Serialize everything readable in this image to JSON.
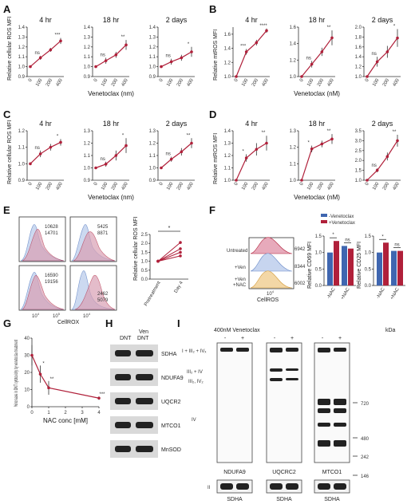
{
  "panels": {
    "A": "A",
    "B": "B",
    "C": "C",
    "D": "D",
    "E": "E",
    "F": "F",
    "G": "G",
    "H": "H",
    "I": "I"
  },
  "chart_data": [
    {
      "id": "A",
      "type": "line",
      "ylabel": "Relative cellular ROS MFI",
      "xlabel": "Venetoclax (nm)",
      "ylim": [
        0.9,
        1.4
      ],
      "yticks": [
        "0.9",
        "1.0",
        "1.1",
        "1.2",
        "1.3",
        "1.4"
      ],
      "categories": [
        "0",
        "100",
        "200",
        "400"
      ],
      "subplots": [
        {
          "title": "4 hr",
          "values": [
            1.0,
            1.09,
            1.17,
            1.26
          ],
          "err": [
            0.0,
            0.02,
            0.02,
            0.03
          ],
          "sig": [
            "",
            "ns",
            "",
            "***"
          ]
        },
        {
          "title": "18 hr",
          "values": [
            1.0,
            1.06,
            1.12,
            1.22
          ],
          "err": [
            0.0,
            0.03,
            0.03,
            0.05
          ],
          "sig": [
            "",
            "ns",
            "",
            "**"
          ]
        },
        {
          "title": "2 days",
          "values": [
            1.0,
            1.05,
            1.09,
            1.15
          ],
          "err": [
            0.0,
            0.03,
            0.03,
            0.05
          ],
          "sig": [
            "",
            "ns",
            "",
            "*"
          ]
        }
      ]
    },
    {
      "id": "B",
      "type": "line",
      "ylabel": "Relative mtROS MFI",
      "xlabel": "Venetoclax (nM)",
      "subplots": [
        {
          "title": "4 hr",
          "ylim": [
            1.0,
            1.7
          ],
          "yticks": [
            "1.0",
            "1.2",
            "1.4",
            "1.6"
          ],
          "values": [
            1.0,
            1.35,
            1.48,
            1.65
          ],
          "err": [
            0.0,
            0.04,
            0.04,
            0.03
          ],
          "sig": [
            "",
            "***",
            "",
            "****"
          ]
        },
        {
          "title": "18 hr",
          "ylim": [
            1.0,
            1.6
          ],
          "yticks": [
            "1.0",
            "1.2",
            "1.4",
            "1.6"
          ],
          "values": [
            1.0,
            1.15,
            1.3,
            1.47
          ],
          "err": [
            0.0,
            0.04,
            0.05,
            0.09
          ],
          "sig": [
            "",
            "ns",
            "",
            "**"
          ]
        },
        {
          "title": "2 days",
          "ylim": [
            1.0,
            2.0
          ],
          "yticks": [
            "1.0",
            "1.2",
            "1.4",
            "1.6",
            "1.8",
            "2.0"
          ],
          "values": [
            1.0,
            1.3,
            1.5,
            1.78
          ],
          "err": [
            0.0,
            0.1,
            0.12,
            0.18
          ],
          "sig": [
            "",
            "ns",
            "",
            "*"
          ]
        }
      ],
      "categories": [
        "0",
        "100",
        "200",
        "400"
      ]
    },
    {
      "id": "C",
      "type": "line",
      "ylabel": "Relative cellular ROS MFI",
      "xlabel": "Venetoclax (nm)",
      "categories": [
        "0",
        "100",
        "200",
        "400"
      ],
      "subplots": [
        {
          "title": "4 hr",
          "ylim": [
            0.9,
            1.2
          ],
          "yticks": [
            "0.9",
            "1.0",
            "1.1",
            "1.2"
          ],
          "values": [
            1.0,
            1.06,
            1.1,
            1.13
          ],
          "err": [
            0.0,
            0.02,
            0.02,
            0.02
          ],
          "sig": [
            "",
            "ns",
            "",
            "*"
          ]
        },
        {
          "title": "18 hr",
          "ylim": [
            0.9,
            1.3
          ],
          "yticks": [
            "0.9",
            "1.0",
            "1.1",
            "1.2",
            "1.3"
          ],
          "values": [
            1.0,
            1.03,
            1.1,
            1.18
          ],
          "err": [
            0.0,
            0.02,
            0.04,
            0.06
          ],
          "sig": [
            "",
            "ns",
            "",
            "*"
          ]
        },
        {
          "title": "2 days",
          "ylim": [
            0.9,
            1.3
          ],
          "yticks": [
            "0.9",
            "1.0",
            "1.1",
            "1.2",
            "1.3"
          ],
          "values": [
            1.0,
            1.07,
            1.13,
            1.2
          ],
          "err": [
            0.0,
            0.02,
            0.03,
            0.04
          ],
          "sig": [
            "",
            "ns",
            "",
            "**"
          ]
        }
      ]
    },
    {
      "id": "D",
      "type": "line",
      "ylabel": "Relative mtROS MFI",
      "xlabel": "Venetoclax (nM)",
      "categories": [
        "0",
        "100",
        "200",
        "400"
      ],
      "subplots": [
        {
          "title": "4 hr",
          "ylim": [
            1.0,
            1.4
          ],
          "yticks": [
            "1.0",
            "1.1",
            "1.2",
            "1.3",
            "1.4"
          ],
          "values": [
            1.0,
            1.18,
            1.25,
            1.3
          ],
          "err": [
            0.0,
            0.03,
            0.05,
            0.06
          ],
          "sig": [
            "",
            "*",
            "",
            "**"
          ]
        },
        {
          "title": "18 hr",
          "ylim": [
            1.0,
            1.3
          ],
          "yticks": [
            "1.0",
            "1.1",
            "1.2",
            "1.3"
          ],
          "values": [
            1.0,
            1.19,
            1.22,
            1.25
          ],
          "err": [
            0.0,
            0.02,
            0.02,
            0.03
          ],
          "sig": [
            "",
            "*",
            "",
            "**"
          ]
        },
        {
          "title": "2 days",
          "ylim": [
            1.0,
            3.5
          ],
          "yticks": [
            "1.0",
            "1.5",
            "2.0",
            "2.5",
            "3.0",
            "3.5"
          ],
          "values": [
            1.0,
            1.5,
            2.2,
            3.0
          ],
          "err": [
            0.0,
            0.1,
            0.2,
            0.3
          ],
          "sig": [
            "",
            "ns",
            "",
            "**"
          ]
        }
      ]
    },
    {
      "id": "E-dot",
      "type": "scatter",
      "ylabel": "Relative cellular ROS MFI",
      "categories": [
        "Pretreatment",
        "Day 4"
      ],
      "ylim": [
        0.0,
        2.5
      ],
      "yticks": [
        "0.0",
        "0.5",
        "1.0",
        "1.5",
        "2.0",
        "2.5"
      ],
      "series": [
        {
          "values": [
            1.0,
            2.05
          ]
        },
        {
          "values": [
            1.0,
            1.7
          ]
        },
        {
          "values": [
            1.0,
            1.5
          ]
        },
        {
          "values": [
            1.0,
            1.3
          ]
        }
      ],
      "sig": "*"
    },
    {
      "id": "F-bar",
      "type": "bar",
      "legend": [
        "-Venetoclax",
        "+Venetoclax"
      ],
      "colors": {
        "minus": "#3f66b0",
        "plus": "#b0203a"
      },
      "categories": [
        "-NAC",
        "+NAC"
      ],
      "subplots": [
        {
          "ylabel": "Relative CD69 MFI",
          "ylim": [
            0.0,
            1.5
          ],
          "yticks": [
            "0.0",
            "0.5",
            "1.0",
            "1.5"
          ],
          "minus": [
            1.0,
            1.2
          ],
          "plus": [
            1.35,
            1.12
          ],
          "sig": [
            "*",
            "ns"
          ]
        },
        {
          "ylabel": "Relative CD25 MFI",
          "ylim": [
            0.0,
            1.5
          ],
          "yticks": [
            "0.0",
            "0.5",
            "1.0",
            "1.5"
          ],
          "minus": [
            1.0,
            1.05
          ],
          "plus": [
            1.3,
            1.05
          ],
          "sig": [
            "*",
            "ns"
          ]
        }
      ]
    },
    {
      "id": "G",
      "type": "line",
      "ylabel": "%increase in DNT cytotoxicity by venetoclax treatment",
      "xlabel": "NAC conc [mM]",
      "xlim": [
        0,
        4
      ],
      "xticks": [
        "0",
        "1",
        "2",
        "3",
        "4"
      ],
      "ylim": [
        0,
        40
      ],
      "yticks": [
        "0",
        "10",
        "20",
        "30",
        "40"
      ],
      "x": [
        0,
        0.5,
        1,
        4
      ],
      "values": [
        30,
        19,
        11,
        5
      ],
      "err": [
        6,
        5,
        4,
        1
      ],
      "sig": [
        "",
        "*",
        "**",
        "***"
      ]
    }
  ],
  "E": {
    "xlabel": "CellROX",
    "mfi": [
      [
        "10628",
        "14701"
      ],
      [
        "5425",
        "8871"
      ],
      [
        "16590",
        "19156"
      ],
      [
        "2462",
        "5079"
      ]
    ],
    "tick_1e4": "10",
    "tick_1e5": "10",
    "exp4": "4",
    "exp5": "5"
  },
  "F": {
    "xlabel": "CellROS",
    "rows": [
      "Untreated",
      "+Ven",
      "+Ven\n+NAC"
    ],
    "row1": "Untreated",
    "row2": "+Ven",
    "row3a": "+Ven",
    "row3b": "+NAC",
    "mfi": [
      "6942",
      "8344",
      "6002"
    ],
    "tick": "10",
    "exp": "4"
  },
  "H": {
    "headers": [
      "DNT",
      "Ven\nDNT"
    ],
    "header1": "DNT",
    "header2a": "Ven",
    "header2b": "DNT",
    "labels": [
      "SDHA",
      "NDUFA9",
      "UQCR2",
      "MTCO1",
      "MnSOD"
    ]
  },
  "I": {
    "treatment": "400nM Venetoclax",
    "lanes": [
      "-",
      "+"
    ],
    "kda_label": "kDa",
    "markers": [
      "720",
      "480",
      "242",
      "146"
    ],
    "complex_labels": [
      "I + III₂ + IVₓ",
      "III₂ + IV",
      "III₂, IV₂",
      "IV"
    ],
    "blots": [
      "NDUFA9",
      "UQCRC2",
      "MTCO1"
    ],
    "loading_label": "II",
    "loading": "SDHA"
  }
}
